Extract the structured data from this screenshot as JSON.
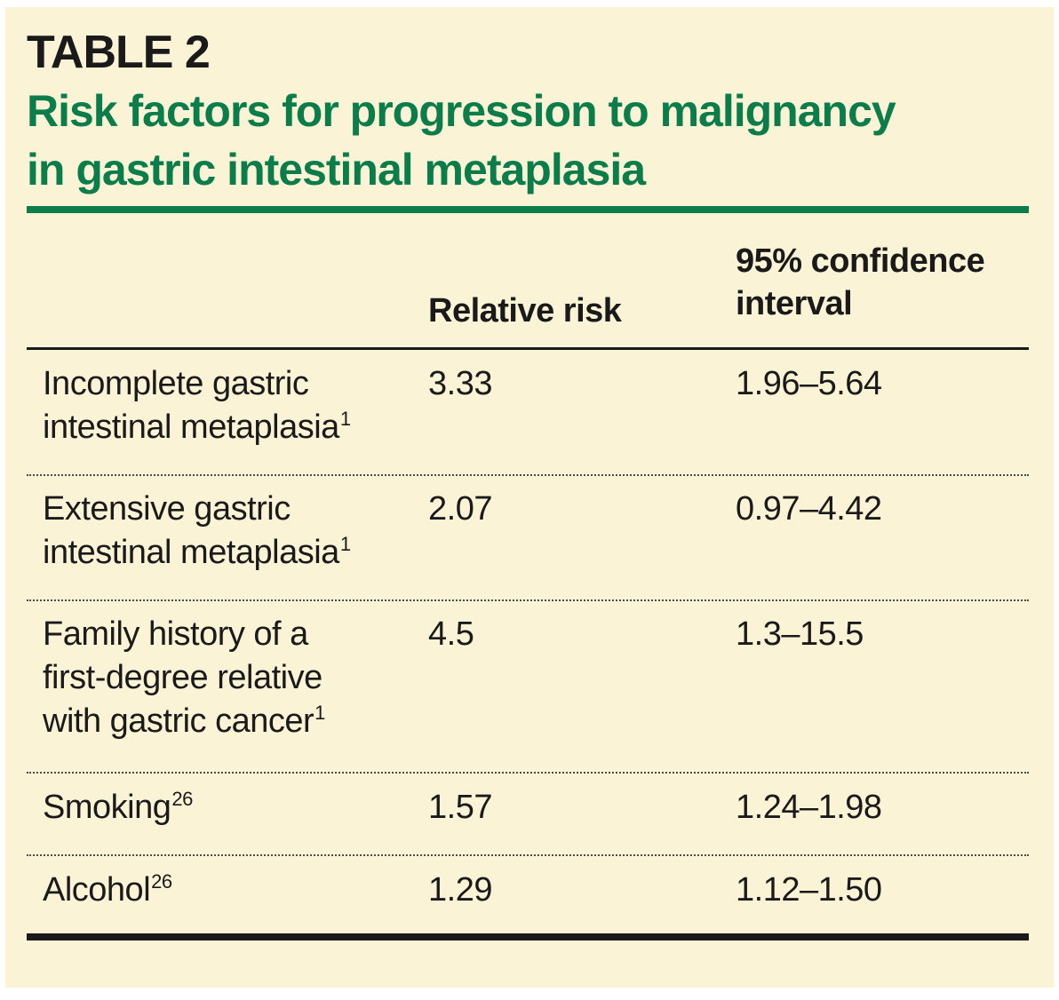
{
  "table": {
    "label": "TABLE 2",
    "title_line1": "Risk factors for progression to malignancy",
    "title_line2": "in gastric intestinal metaplasia",
    "columns": {
      "factor": "",
      "relative_risk": "Relative risk",
      "ci_line1": "95% confidence",
      "ci_line2": "interval"
    },
    "rows": [
      {
        "factor_lines": [
          "Incomplete gastric",
          "intestinal metaplasia"
        ],
        "ref": "1",
        "relative_risk": "3.33",
        "ci": "1.96–5.64"
      },
      {
        "factor_lines": [
          "Extensive gastric",
          "intestinal metaplasia"
        ],
        "ref": "1",
        "relative_risk": "2.07",
        "ci": "0.97–4.42"
      },
      {
        "factor_lines": [
          "Family history of a",
          "first-degree relative",
          "with gastric cancer"
        ],
        "ref": "1",
        "relative_risk": "4.5",
        "ci": "1.3–15.5"
      },
      {
        "factor_lines": [
          "Smoking"
        ],
        "ref": "26",
        "relative_risk": "1.57",
        "ci": "1.24–1.98"
      },
      {
        "factor_lines": [
          "Alcohol"
        ],
        "ref": "26",
        "relative_risk": "1.29",
        "ci": "1.12–1.50"
      }
    ]
  },
  "colors": {
    "background": "#fbf3d6",
    "accent_green": "#0a7d4a",
    "text": "#1a1a1a"
  }
}
